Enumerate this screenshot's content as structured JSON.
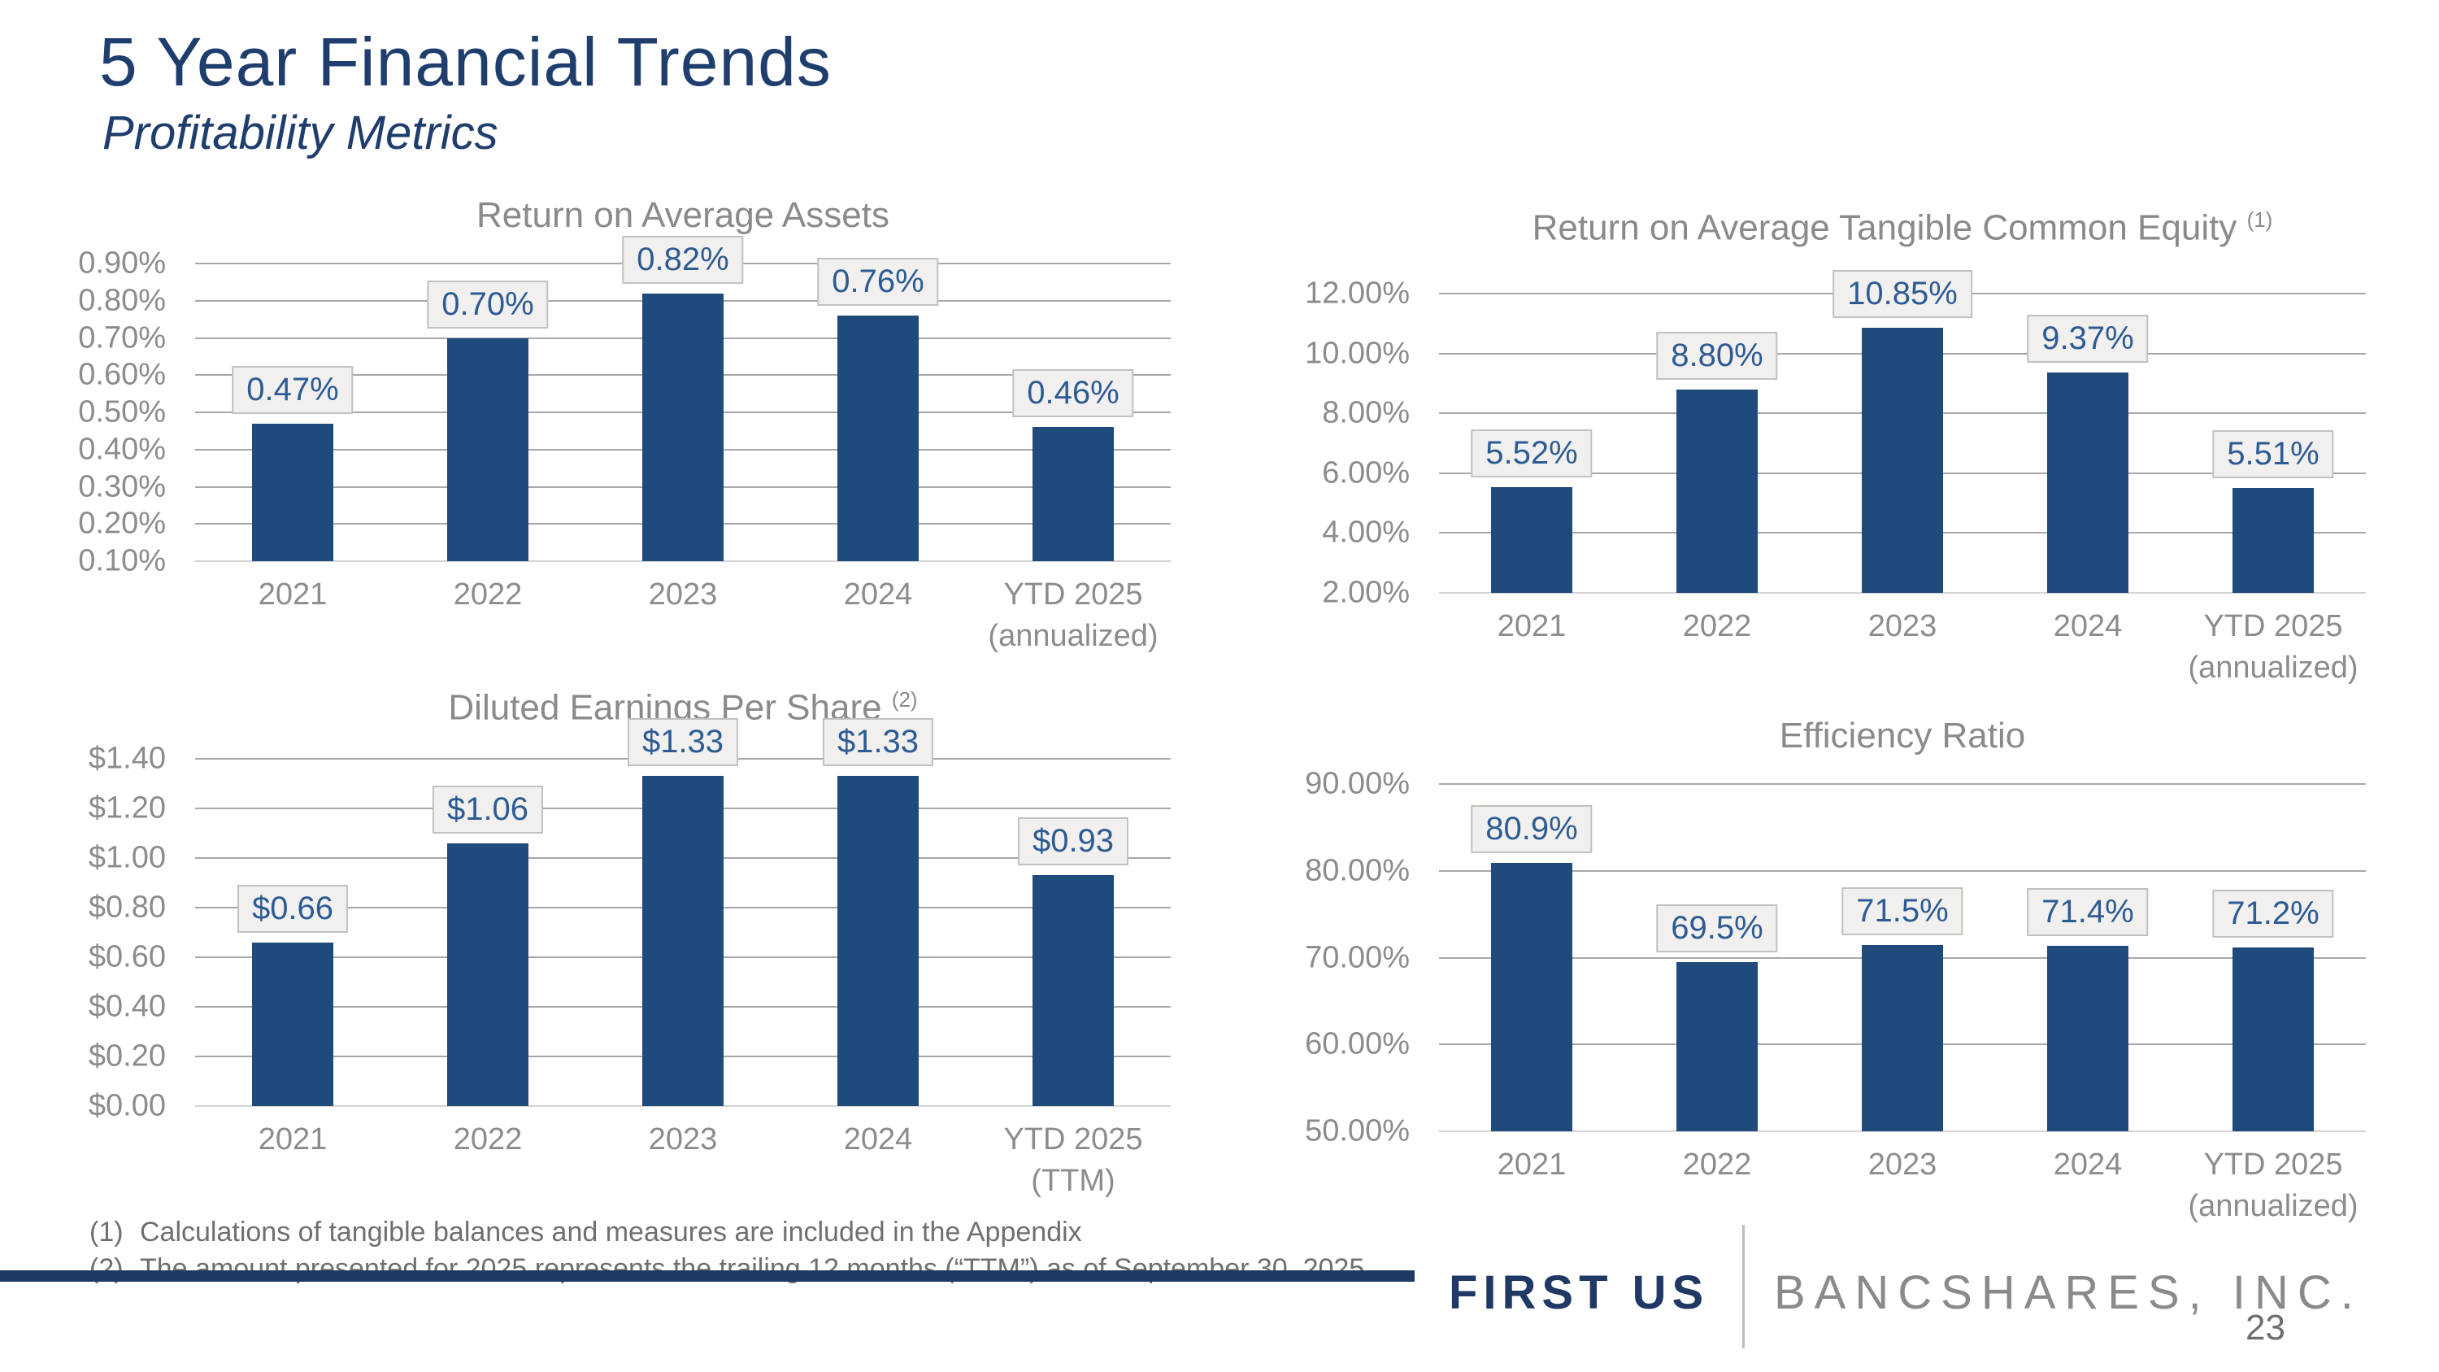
{
  "slide": {
    "title": "5 Year Financial Trends",
    "subtitle": "Profitability Metrics",
    "footnotes": [
      {
        "ref": "(1)",
        "text": "Calculations of tangible balances and measures are included in the Appendix"
      },
      {
        "ref": "(2)",
        "text": "The amount presented for 2025 represents the trailing 12 months (“TTM”) as of September 30, 2025"
      }
    ],
    "footer": {
      "brand_primary": "FIRST US",
      "brand_secondary": "BANCSHARES, INC.",
      "page_number": "23"
    },
    "colors": {
      "bar_fill": "#1f4b7c",
      "title_navy": "#1f3d6d",
      "footer_navy": "#1f3864",
      "data_label_text": "#2d5b94",
      "data_label_box_bg": "#f1f0ee",
      "data_label_box_border": "#c2c1bd",
      "axis_text_gray": "#8c8c8c",
      "chart_title_gray": "#8a8a8a"
    }
  },
  "chart_data": [
    {
      "type": "bar",
      "title": "Return on Average Assets",
      "footnote_ref": "",
      "categories": [
        "2021",
        "2022",
        "2023",
        "2024",
        "YTD 2025\n(annualized)"
      ],
      "values": [
        0.47,
        0.7,
        0.82,
        0.76,
        0.46
      ],
      "data_labels": [
        "0.47%",
        "0.70%",
        "0.82%",
        "0.76%",
        "0.46%"
      ],
      "ylim": [
        0.1,
        0.9
      ],
      "ytick_values": [
        0.9,
        0.8,
        0.7,
        0.6,
        0.5,
        0.4,
        0.3,
        0.2,
        0.1
      ],
      "ytick_labels": [
        "0.90%",
        "0.80%",
        "0.70%",
        "0.60%",
        "0.50%",
        "0.40%",
        "0.30%",
        "0.20%",
        "0.10%"
      ],
      "grid": "horizontal",
      "legend": "none"
    },
    {
      "type": "bar",
      "title": "Return on Average Tangible Common Equity",
      "footnote_ref": "(1)",
      "categories": [
        "2021",
        "2022",
        "2023",
        "2024",
        "YTD 2025\n(annualized)"
      ],
      "values": [
        5.52,
        8.8,
        10.85,
        9.37,
        5.51
      ],
      "data_labels": [
        "5.52%",
        "8.80%",
        "10.85%",
        "9.37%",
        "5.51%"
      ],
      "ylim": [
        2.0,
        12.0
      ],
      "ytick_values": [
        12.0,
        10.0,
        8.0,
        6.0,
        4.0,
        2.0
      ],
      "ytick_labels": [
        "12.00%",
        "10.00%",
        "8.00%",
        "6.00%",
        "4.00%",
        "2.00%"
      ],
      "grid": "horizontal",
      "legend": "none"
    },
    {
      "type": "bar",
      "title": "Diluted Earnings Per Share",
      "footnote_ref": "(2)",
      "categories": [
        "2021",
        "2022",
        "2023",
        "2024",
        "YTD 2025\n(TTM)"
      ],
      "values": [
        0.66,
        1.06,
        1.33,
        1.33,
        0.93
      ],
      "data_labels": [
        "$0.66",
        "$1.06",
        "$1.33",
        "$1.33",
        "$0.93"
      ],
      "ylim": [
        0.0,
        1.4
      ],
      "ytick_values": [
        1.4,
        1.2,
        1.0,
        0.8,
        0.6,
        0.4,
        0.2,
        0.0
      ],
      "ytick_labels": [
        "$1.40",
        "$1.20",
        "$1.00",
        "$0.80",
        "$0.60",
        "$0.40",
        "$0.20",
        "$0.00"
      ],
      "grid": "horizontal",
      "legend": "none"
    },
    {
      "type": "bar",
      "title": "Efficiency Ratio",
      "footnote_ref": "",
      "categories": [
        "2021",
        "2022",
        "2023",
        "2024",
        "YTD 2025\n(annualized)"
      ],
      "values": [
        80.9,
        69.5,
        71.5,
        71.4,
        71.2
      ],
      "data_labels": [
        "80.9%",
        "69.5%",
        "71.5%",
        "71.4%",
        "71.2%"
      ],
      "ylim": [
        50.0,
        90.0
      ],
      "ytick_values": [
        90.0,
        80.0,
        70.0,
        60.0,
        50.0
      ],
      "ytick_labels": [
        "90.00%",
        "80.00%",
        "70.00%",
        "60.00%",
        "50.00%"
      ],
      "grid": "horizontal",
      "legend": "none"
    }
  ]
}
